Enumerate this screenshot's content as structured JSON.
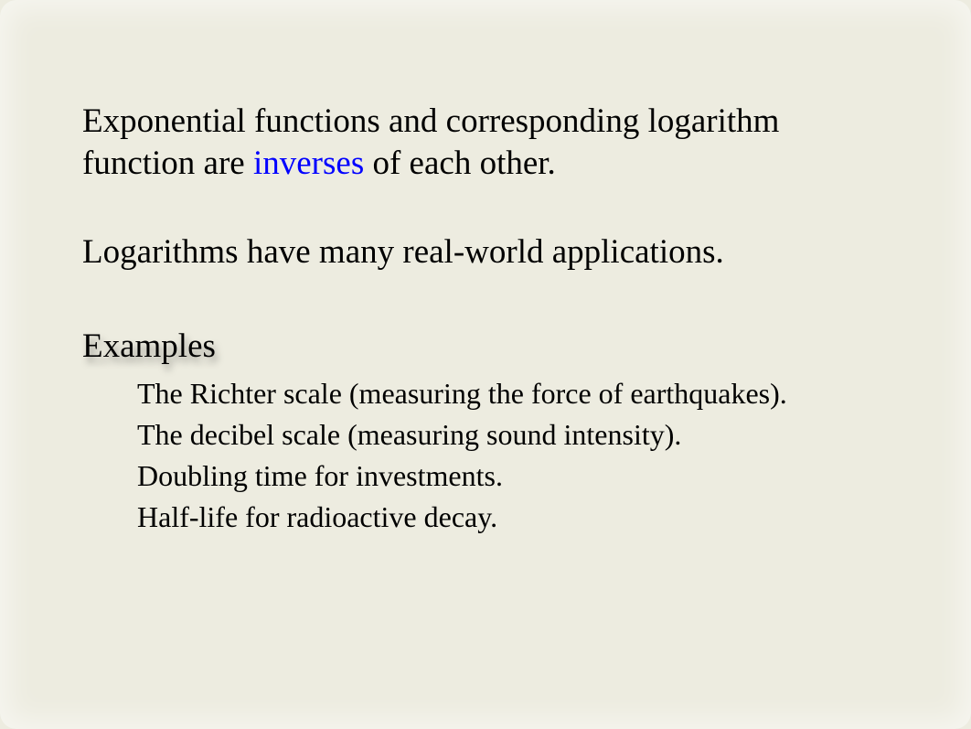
{
  "para1": {
    "before": "Exponential functions and corresponding logarithm function are ",
    "highlight": "inverses",
    "after": " of each other."
  },
  "para2": "Logarithms have many real-world applications.",
  "examples_heading": "Examples",
  "examples": [
    "The Richter scale (measuring the force of earthquakes).",
    "The decibel scale (measuring sound intensity).",
    "Doubling time for investments.",
    "Half-life for radioactive decay."
  ],
  "colors": {
    "background": "#edece0",
    "text": "#000000",
    "highlight": "#0000ff"
  },
  "fonts": {
    "body_size": 37,
    "list_size": 32,
    "family": "Georgia, Times New Roman, serif"
  }
}
